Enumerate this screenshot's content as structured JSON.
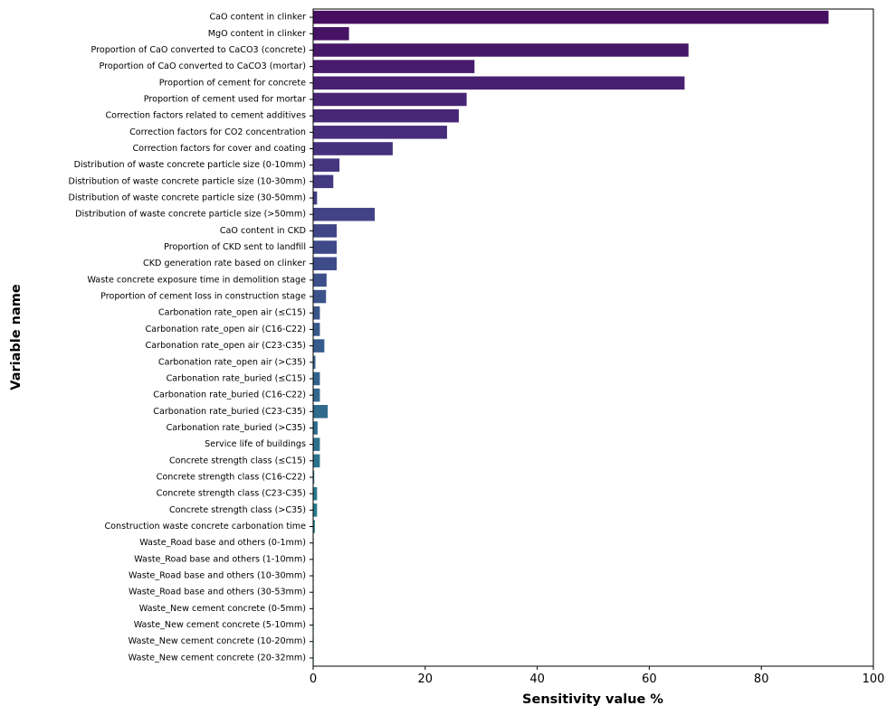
{
  "chart_data": {
    "type": "bar",
    "orientation": "horizontal",
    "title": "",
    "xlabel": "Sensitivity value %",
    "ylabel": "Variable name",
    "xlim": [
      0,
      100
    ],
    "xticks": [
      0,
      20,
      40,
      60,
      80,
      100
    ],
    "grid": false,
    "palette": "viridis",
    "categories": [
      "CaO content in clinker",
      "MgO content in clinker",
      "Proportion of CaO converted to CaCO3 (concrete)",
      "Proportion of CaO converted to CaCO3 (mortar)",
      "Proportion of cement for concrete",
      "Proportion of cement used for mortar",
      "Correction factors related to cement additives",
      "Correction factors for CO2 concentration",
      "Correction factors for cover and coating",
      "Distribution of waste concrete particle size (0-10mm)",
      "Distribution of waste concrete particle size (10-30mm)",
      "Distribution of waste concrete particle size (30-50mm)",
      "Distribution of waste concrete particle size (>50mm)",
      "CaO content in CKD",
      "Proportion of CKD sent to landfill",
      "CKD generation rate based on clinker",
      "Waste concrete exposure time in demolition stage",
      "Proportion of cement loss in construction stage",
      "Carbonation rate_open air (≤C15)",
      "Carbonation rate_open air (C16-C22)",
      "Carbonation rate_open air (C23-C35)",
      "Carbonation rate_open air (>C35)",
      "Carbonation rate_buried (≤C15)",
      "Carbonation rate_buried (C16-C22)",
      "Carbonation rate_buried (C23-C35)",
      "Carbonation rate_buried (>C35)",
      "Service life of buildings",
      "Concrete strength class (≤C15)",
      "Concrete strength class (C16-C22)",
      "Concrete strength class (C23-C35)",
      "Concrete strength class (>C35)",
      "Construction waste concrete carbonation time",
      "Waste_Road base and others (0-1mm)",
      "Waste_Road base and others (1-10mm)",
      "Waste_Road base and others (10-30mm)",
      "Waste_Road base and others (30-53mm)",
      "Waste_New cement concrete (0-5mm)",
      "Waste_New cement concrete (5-10mm)",
      "Waste_New cement concrete (10-20mm)",
      "Waste_New cement concrete (20-32mm)"
    ],
    "values": [
      92.0,
      6.4,
      67.0,
      28.8,
      66.3,
      27.4,
      26.0,
      23.9,
      14.2,
      4.7,
      3.6,
      0.7,
      11.0,
      4.2,
      4.2,
      4.2,
      2.4,
      2.3,
      1.2,
      1.2,
      2.0,
      0.4,
      1.2,
      1.2,
      2.6,
      0.8,
      1.2,
      1.2,
      0.2,
      0.7,
      0.7,
      0.3,
      0.1,
      0.1,
      0.1,
      0.1,
      0.1,
      0.1,
      0.1,
      0.1
    ]
  }
}
